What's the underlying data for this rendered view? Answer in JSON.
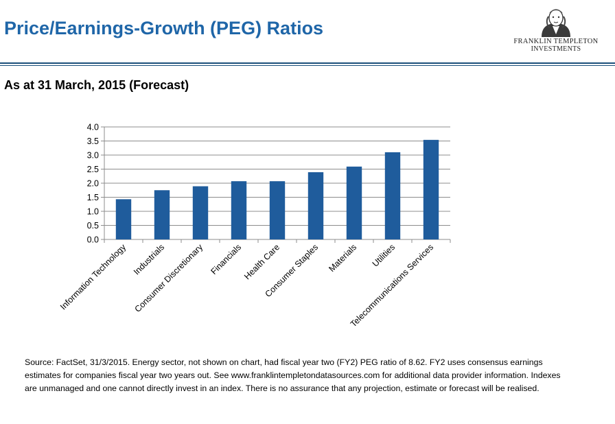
{
  "header": {
    "title": "Price/Earnings-Growth (PEG) Ratios",
    "subtitle": "As at 31 March, 2015 (Forecast)"
  },
  "logo": {
    "line1": "FRANKLIN TEMPLETON",
    "line2": "INVESTMENTS",
    "icon": "benjamin-franklin-portrait"
  },
  "colors": {
    "title": "#1f66a8",
    "bar": "#1f5c9c",
    "rule": "#1a4f7a"
  },
  "chart_data": {
    "type": "bar",
    "categories": [
      "Information Technology",
      "Industrials",
      "Consumer Discretionary",
      "Financials",
      "Health Care",
      "Consumer Staples",
      "Materials",
      "Utilities",
      "Telecommunications Services"
    ],
    "values": [
      1.43,
      1.75,
      1.89,
      2.07,
      2.07,
      2.39,
      2.59,
      3.1,
      3.54
    ],
    "yticks": [
      "0.0",
      "0.5",
      "1.0",
      "1.5",
      "2.0",
      "2.5",
      "3.0",
      "3.5",
      "4.0"
    ],
    "ylim": [
      0,
      4
    ],
    "grid": true,
    "legend": "none"
  },
  "footnote": "Source: FactSet, 31/3/2015. Energy sector, not shown on chart, had fiscal year two (FY2) PEG ratio of 8.62. FY2 uses consensus earnings estimates for companies fiscal year two years out. See www.franklintempletondatasources.com for additional data provider information. Indexes are unmanaged and one cannot  directly invest in an index. There is no assurance that any projection, estimate or forecast will be realised."
}
